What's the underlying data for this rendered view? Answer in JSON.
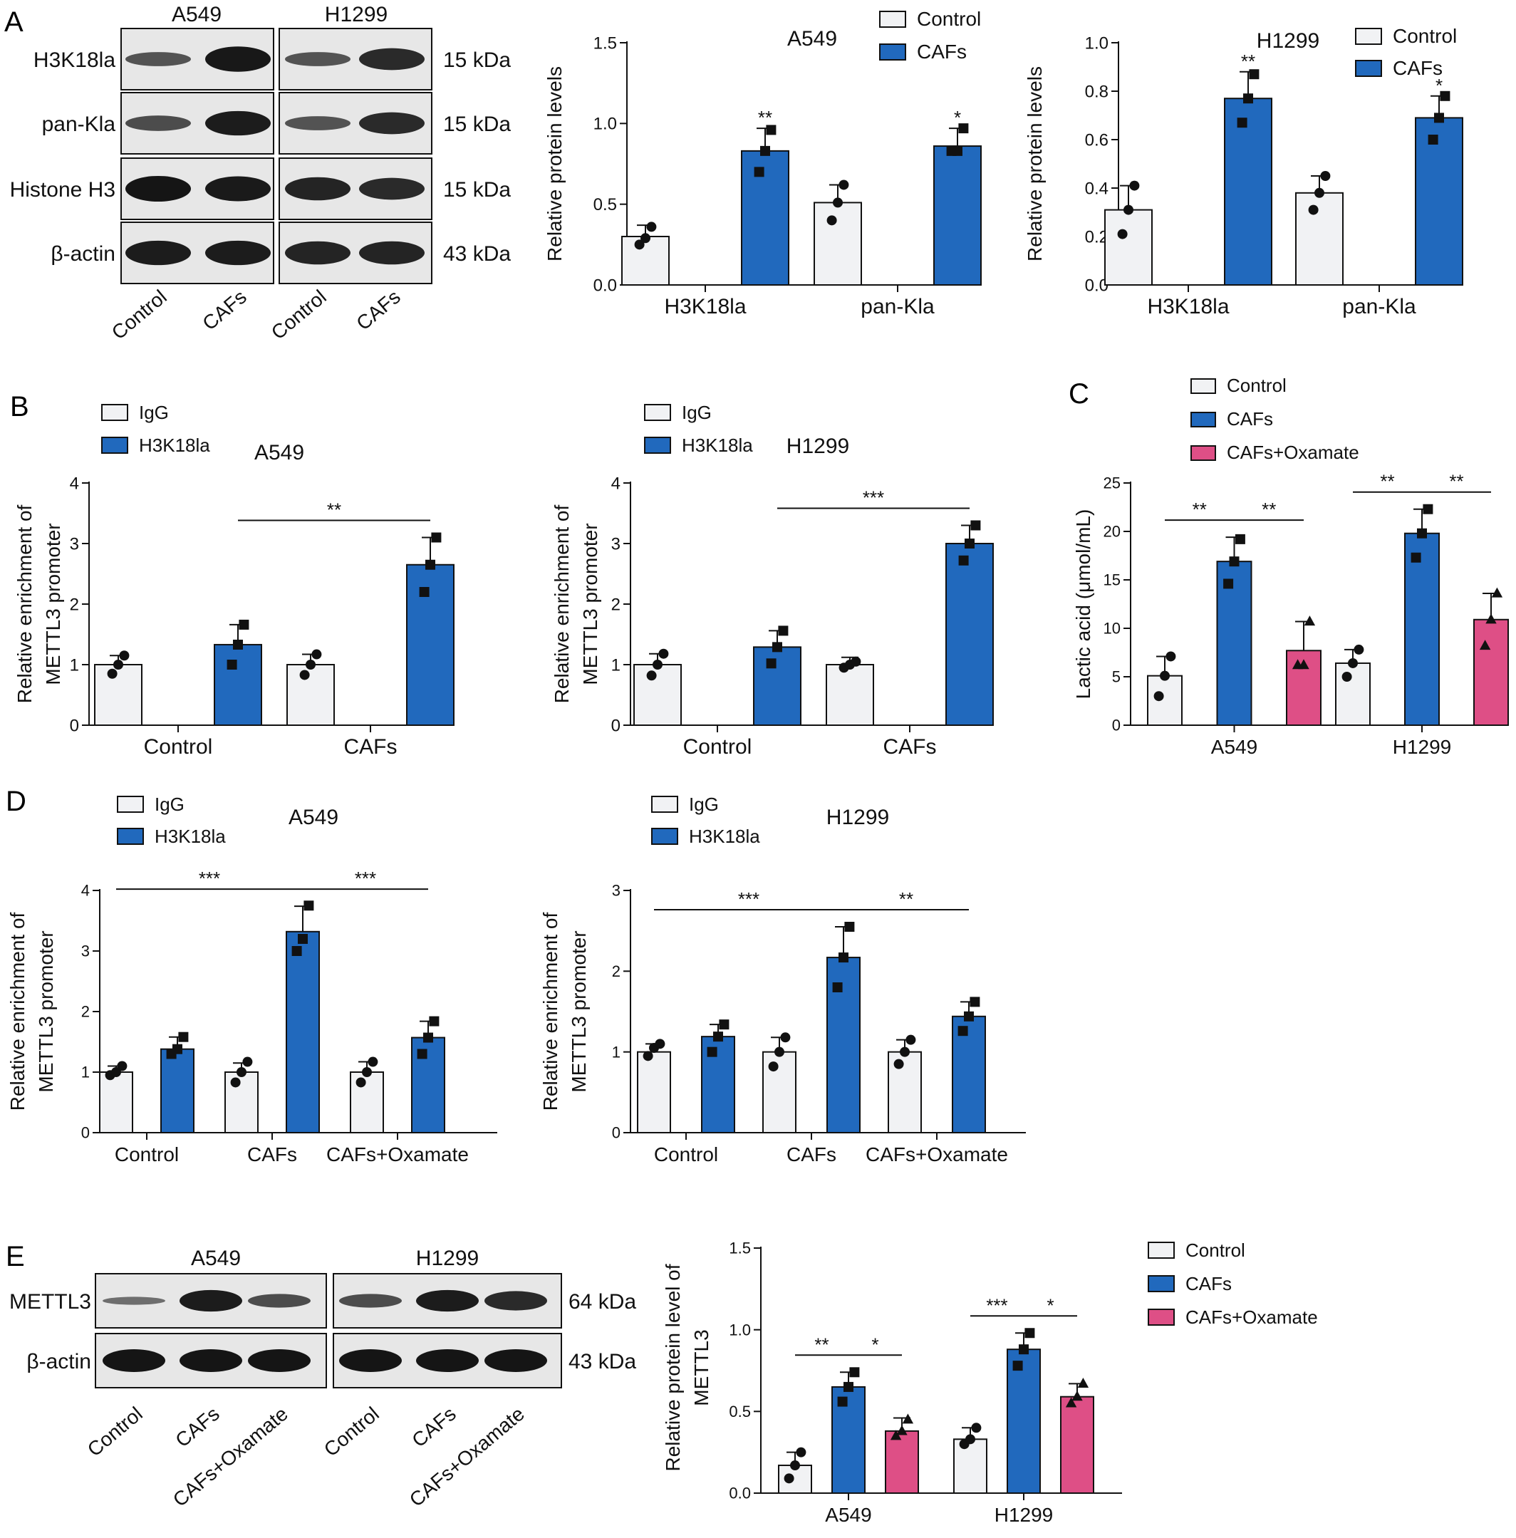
{
  "colors": {
    "control": "#f1f2f4",
    "cafs": "#2169bd",
    "oxamate": "#de4f86",
    "ink": "#111111",
    "blot_bg": "#e7e7e7",
    "blot_band": "#151515"
  },
  "panels": {
    "A": {
      "label": "A",
      "blot": {
        "cell_lines": [
          "A549",
          "H1299"
        ],
        "rows": [
          {
            "name": "H3K18la",
            "kda": "15 kDa",
            "intensity": [
              0.55,
              0.98,
              0.55,
              0.85
            ]
          },
          {
            "name": "pan-Kla",
            "kda": "15 kDa",
            "intensity": [
              0.6,
              0.95,
              0.55,
              0.85
            ]
          },
          {
            "name": "Histone H3",
            "kda": "15 kDa",
            "intensity": [
              1.0,
              0.97,
              0.9,
              0.85
            ]
          },
          {
            "name": "β-actin",
            "kda": "43 kDa",
            "intensity": [
              0.95,
              0.95,
              0.9,
              0.9
            ]
          }
        ],
        "lanes": [
          "Control",
          "CAFs",
          "Control",
          "CAFs"
        ]
      }
    },
    "B": {
      "label": "B"
    },
    "C": {
      "label": "C"
    },
    "D": {
      "label": "D"
    },
    "E": {
      "label": "E",
      "blot": {
        "cell_lines": [
          "A549",
          "H1299"
        ],
        "rows": [
          {
            "name": "METTL3",
            "kda": "64 kDa",
            "intensity": [
              0.35,
              0.95,
              0.6,
              0.6,
              0.95,
              0.85
            ]
          },
          {
            "name": "β-actin",
            "kda": "43 kDa",
            "intensity": [
              1.0,
              1.0,
              1.0,
              1.0,
              1.0,
              1.0
            ]
          }
        ],
        "lanes": [
          "Control",
          "CAFs",
          "CAFs+Oxamate",
          "Control",
          "CAFs",
          "CAFs+Oxamate"
        ]
      }
    }
  },
  "chart_data": [
    {
      "id": "A-A549",
      "type": "bar",
      "title": "A549",
      "ylabel": "Relative protein levels",
      "ylim": [
        0,
        1.5
      ],
      "yticks": [
        "0.0",
        "0.5",
        "1.0",
        "1.5"
      ],
      "categories": [
        "H3K18la",
        "pan-Kla"
      ],
      "series": [
        {
          "name": "Control",
          "color": "control",
          "marker": "circle",
          "values": [
            0.3,
            0.51
          ],
          "err": [
            0.07,
            0.11
          ],
          "points": [
            [
              0.25,
              0.29,
              0.36
            ],
            [
              0.4,
              0.51,
              0.62
            ]
          ]
        },
        {
          "name": "CAFs",
          "color": "cafs",
          "marker": "square",
          "values": [
            0.83,
            0.86
          ],
          "err": [
            0.14,
            0.11
          ],
          "points": [
            [
              0.7,
              0.83,
              0.96
            ],
            [
              0.83,
              0.83,
              0.97
            ]
          ]
        }
      ],
      "sig": [
        {
          "type": "above",
          "series": 1,
          "cat": 0,
          "text": "**"
        },
        {
          "type": "above",
          "series": 1,
          "cat": 1,
          "text": "*"
        }
      ],
      "legend": "top-right"
    },
    {
      "id": "A-H1299",
      "type": "bar",
      "title": "H1299",
      "ylabel": "Relative protein levels",
      "ylim": [
        0,
        1.0
      ],
      "yticks": [
        "0.0",
        "0.2",
        "0.4",
        "0.6",
        "0.8",
        "1.0"
      ],
      "categories": [
        "H3K18la",
        "pan-Kla"
      ],
      "series": [
        {
          "name": "Control",
          "color": "control",
          "marker": "circle",
          "values": [
            0.31,
            0.38
          ],
          "err": [
            0.1,
            0.07
          ],
          "points": [
            [
              0.21,
              0.31,
              0.41
            ],
            [
              0.31,
              0.38,
              0.45
            ]
          ]
        },
        {
          "name": "CAFs",
          "color": "cafs",
          "marker": "square",
          "values": [
            0.77,
            0.69
          ],
          "err": [
            0.11,
            0.09
          ],
          "points": [
            [
              0.67,
              0.77,
              0.87
            ],
            [
              0.6,
              0.69,
              0.78
            ]
          ]
        }
      ],
      "sig": [
        {
          "type": "above",
          "series": 1,
          "cat": 0,
          "text": "**"
        },
        {
          "type": "above",
          "series": 1,
          "cat": 1,
          "text": "*"
        }
      ],
      "legend": "top-right"
    },
    {
      "id": "B-A549",
      "type": "bar",
      "title": "A549",
      "ylabel": [
        "Relative enrichment of",
        "METTL3 promoter"
      ],
      "ylim": [
        0,
        4
      ],
      "yticks": [
        "0",
        "1",
        "2",
        "3",
        "4"
      ],
      "categories": [
        "Control",
        "CAFs"
      ],
      "series": [
        {
          "name": "IgG",
          "color": "control",
          "marker": "circle",
          "values": [
            1.0,
            1.0
          ],
          "err": [
            0.15,
            0.17
          ],
          "points": [
            [
              0.85,
              1.0,
              1.15
            ],
            [
              0.83,
              1.0,
              1.17
            ]
          ]
        },
        {
          "name": "H3K18la",
          "color": "cafs",
          "marker": "square",
          "values": [
            1.33,
            2.65
          ],
          "err": [
            0.33,
            0.45
          ],
          "points": [
            [
              1.0,
              1.33,
              1.66
            ],
            [
              2.2,
              2.65,
              3.1
            ]
          ]
        }
      ],
      "sig": [
        {
          "type": "bracket",
          "from": [
            0,
            1
          ],
          "to": [
            1,
            1
          ],
          "text": "**"
        }
      ],
      "legend": "top-left"
    },
    {
      "id": "B-H1299",
      "type": "bar",
      "title": "H1299",
      "ylabel": [
        "Relative enrichment of",
        "METTL3 promoter"
      ],
      "ylim": [
        0,
        4
      ],
      "yticks": [
        "0",
        "1",
        "2",
        "3",
        "4"
      ],
      "categories": [
        "Control",
        "CAFs"
      ],
      "series": [
        {
          "name": "IgG",
          "color": "control",
          "marker": "circle",
          "values": [
            1.0,
            1.0
          ],
          "err": [
            0.18,
            0.12
          ],
          "points": [
            [
              0.82,
              1.0,
              1.18
            ],
            [
              0.95,
              1.0,
              1.05
            ]
          ]
        },
        {
          "name": "H3K18la",
          "color": "cafs",
          "marker": "square",
          "values": [
            1.29,
            3.0
          ],
          "err": [
            0.27,
            0.3
          ],
          "points": [
            [
              1.02,
              1.29,
              1.56
            ],
            [
              2.72,
              3.0,
              3.3
            ]
          ]
        }
      ],
      "sig": [
        {
          "type": "bracket",
          "from": [
            0,
            1
          ],
          "to": [
            1,
            1
          ],
          "text": "***"
        }
      ],
      "legend": "top-left"
    },
    {
      "id": "C",
      "type": "bar",
      "ylabel": "Lactic acid (μmol/mL)",
      "ylim": [
        0,
        25
      ],
      "yticks": [
        "0",
        "5",
        "10",
        "15",
        "20",
        "25"
      ],
      "categories": [
        "A549",
        "H1299"
      ],
      "series": [
        {
          "name": "Control",
          "color": "control",
          "marker": "circle",
          "values": [
            5.1,
            6.4
          ],
          "err": [
            2.0,
            1.4
          ],
          "points": [
            [
              3.0,
              5.1,
              7.1
            ],
            [
              5.0,
              6.4,
              7.8
            ]
          ]
        },
        {
          "name": "CAFs",
          "color": "cafs",
          "marker": "square",
          "values": [
            16.9,
            19.8
          ],
          "err": [
            2.5,
            2.5
          ],
          "points": [
            [
              14.6,
              16.9,
              19.2
            ],
            [
              17.3,
              19.8,
              22.3
            ]
          ]
        },
        {
          "name": "CAFs+Oxamate",
          "color": "oxamate",
          "marker": "triangle",
          "values": [
            7.7,
            10.9
          ],
          "err": [
            3.0,
            2.7
          ],
          "points": [
            [
              6.2,
              6.2,
              10.7
            ],
            [
              8.2,
              10.9,
              13.6
            ]
          ]
        }
      ],
      "sig": [
        {
          "type": "bracket",
          "from": [
            0,
            0
          ],
          "to": [
            0,
            1
          ],
          "text": "**"
        },
        {
          "type": "bracket",
          "from": [
            0,
            1
          ],
          "to": [
            0,
            2
          ],
          "text": "**"
        },
        {
          "type": "bracket",
          "from": [
            1,
            0
          ],
          "to": [
            1,
            1
          ],
          "text": "**"
        },
        {
          "type": "bracket",
          "from": [
            1,
            1
          ],
          "to": [
            1,
            2
          ],
          "text": "**"
        }
      ],
      "legend": "top"
    },
    {
      "id": "D-A549",
      "type": "bar",
      "title": "A549",
      "ylabel": [
        "Relative enrichment of",
        "METTL3 promoter"
      ],
      "ylim": [
        0,
        4
      ],
      "yticks": [
        "0",
        "1",
        "2",
        "3",
        "4"
      ],
      "categories": [
        "Control",
        "CAFs",
        "CAFs+Oxamate"
      ],
      "series": [
        {
          "name": "IgG",
          "color": "control",
          "marker": "circle",
          "values": [
            1.0,
            1.0,
            1.0
          ],
          "err": [
            0.1,
            0.15,
            0.17
          ],
          "points": [
            [
              0.95,
              1.0,
              1.1
            ],
            [
              0.83,
              1.0,
              1.17
            ],
            [
              0.83,
              1.0,
              1.17
            ]
          ]
        },
        {
          "name": "H3K18la",
          "color": "cafs",
          "marker": "square",
          "values": [
            1.38,
            3.32,
            1.57
          ],
          "err": [
            0.2,
            0.42,
            0.27
          ],
          "points": [
            [
              1.3,
              1.38,
              1.58
            ],
            [
              3.0,
              3.2,
              3.75
            ],
            [
              1.3,
              1.57,
              1.84
            ]
          ]
        }
      ],
      "sig": [
        {
          "type": "bracket",
          "from": [
            0,
            0
          ],
          "to": [
            1,
            1
          ],
          "text": "***"
        },
        {
          "type": "bracket",
          "from": [
            1,
            1
          ],
          "to": [
            2,
            1
          ],
          "text": "***"
        }
      ],
      "legend": "top-left"
    },
    {
      "id": "D-H1299",
      "type": "bar",
      "title": "H1299",
      "ylabel": [
        "Relative enrichment of",
        "METTL3 promoter"
      ],
      "ylim": [
        0,
        3
      ],
      "yticks": [
        "0",
        "1",
        "2",
        "3"
      ],
      "categories": [
        "Control",
        "CAFs",
        "CAFs+Oxamate"
      ],
      "series": [
        {
          "name": "IgG",
          "color": "control",
          "marker": "circle",
          "values": [
            1.0,
            1.0,
            1.0
          ],
          "err": [
            0.1,
            0.18,
            0.15
          ],
          "points": [
            [
              0.95,
              1.05,
              1.1
            ],
            [
              0.82,
              1.0,
              1.18
            ],
            [
              0.85,
              1.0,
              1.15
            ]
          ]
        },
        {
          "name": "H3K18la",
          "color": "cafs",
          "marker": "square",
          "values": [
            1.19,
            2.17,
            1.44
          ],
          "err": [
            0.15,
            0.38,
            0.18
          ],
          "points": [
            [
              1.0,
              1.19,
              1.34
            ],
            [
              1.8,
              2.17,
              2.55
            ],
            [
              1.26,
              1.44,
              1.62
            ]
          ]
        }
      ],
      "sig": [
        {
          "type": "bracket",
          "from": [
            0,
            0
          ],
          "to": [
            1,
            1
          ],
          "text": "***"
        },
        {
          "type": "bracket",
          "from": [
            1,
            1
          ],
          "to": [
            2,
            1
          ],
          "text": "**"
        }
      ],
      "legend": "top-left"
    },
    {
      "id": "E",
      "type": "bar",
      "ylabel": [
        "Relative protein level of",
        "METTL3"
      ],
      "ylim": [
        0,
        1.5
      ],
      "yticks": [
        "0.0",
        "0.5",
        "1.0",
        "1.5"
      ],
      "categories": [
        "A549",
        "H1299"
      ],
      "series": [
        {
          "name": "Control",
          "color": "control",
          "marker": "circle",
          "values": [
            0.17,
            0.33
          ],
          "err": [
            0.08,
            0.07
          ],
          "points": [
            [
              0.09,
              0.17,
              0.25
            ],
            [
              0.3,
              0.33,
              0.4
            ]
          ]
        },
        {
          "name": "CAFs",
          "color": "cafs",
          "marker": "square",
          "values": [
            0.65,
            0.88
          ],
          "err": [
            0.09,
            0.1
          ],
          "points": [
            [
              0.56,
              0.65,
              0.74
            ],
            [
              0.78,
              0.88,
              0.98
            ]
          ]
        },
        {
          "name": "CAFs+Oxamate",
          "color": "oxamate",
          "marker": "triangle",
          "values": [
            0.38,
            0.59
          ],
          "err": [
            0.08,
            0.08
          ],
          "points": [
            [
              0.35,
              0.38,
              0.45
            ],
            [
              0.55,
              0.59,
              0.67
            ]
          ]
        }
      ],
      "sig": [
        {
          "type": "bracket",
          "from": [
            0,
            0
          ],
          "to": [
            0,
            1
          ],
          "text": "**"
        },
        {
          "type": "bracket",
          "from": [
            0,
            1
          ],
          "to": [
            0,
            2
          ],
          "text": "*"
        },
        {
          "type": "bracket",
          "from": [
            1,
            0
          ],
          "to": [
            1,
            1
          ],
          "text": "***"
        },
        {
          "type": "bracket",
          "from": [
            1,
            1
          ],
          "to": [
            1,
            2
          ],
          "text": "*"
        }
      ],
      "legend": "top-right"
    }
  ]
}
